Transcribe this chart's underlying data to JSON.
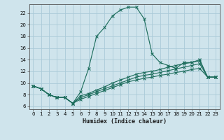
{
  "xlabel": "Humidex (Indice chaleur)",
  "xlim": [
    -0.5,
    23.5
  ],
  "ylim": [
    5.5,
    23.5
  ],
  "xticks": [
    0,
    1,
    2,
    3,
    4,
    5,
    6,
    7,
    8,
    9,
    10,
    11,
    12,
    13,
    14,
    15,
    16,
    17,
    18,
    19,
    20,
    21,
    22,
    23
  ],
  "yticks": [
    6,
    8,
    10,
    12,
    14,
    16,
    18,
    20,
    22
  ],
  "bg_color": "#cfe4ec",
  "grid_color": "#aacad8",
  "line_color": "#1a6b5a",
  "lines": [
    {
      "x": [
        0,
        1,
        2,
        3,
        4,
        5,
        6,
        7,
        8,
        9,
        10,
        11,
        12,
        13,
        14,
        15,
        16,
        17,
        18,
        19,
        20,
        21,
        22,
        23
      ],
      "y": [
        9.5,
        9.0,
        8.0,
        7.5,
        7.5,
        6.5,
        8.5,
        12.5,
        18.0,
        19.5,
        21.5,
        22.5,
        23.0,
        23.0,
        21.0,
        15.0,
        13.5,
        13.0,
        12.5,
        13.5,
        13.5,
        14.0,
        11.0,
        11.0
      ]
    },
    {
      "x": [
        0,
        1,
        2,
        3,
        4,
        5,
        6,
        7,
        8,
        9,
        10,
        11,
        12,
        13,
        14,
        15,
        16,
        17,
        18,
        19,
        20,
        21,
        22,
        23
      ],
      "y": [
        9.5,
        9.0,
        8.0,
        7.5,
        7.5,
        6.5,
        7.8,
        8.2,
        8.8,
        9.3,
        10.0,
        10.5,
        11.0,
        11.5,
        11.8,
        12.0,
        12.3,
        12.7,
        13.0,
        13.3,
        13.5,
        13.8,
        11.0,
        11.0
      ]
    },
    {
      "x": [
        0,
        1,
        2,
        3,
        4,
        5,
        6,
        7,
        8,
        9,
        10,
        11,
        12,
        13,
        14,
        15,
        16,
        17,
        18,
        19,
        20,
        21,
        22,
        23
      ],
      "y": [
        9.5,
        9.0,
        8.0,
        7.5,
        7.5,
        6.5,
        7.5,
        8.0,
        8.5,
        9.0,
        9.5,
        10.0,
        10.5,
        11.0,
        11.3,
        11.5,
        11.8,
        12.1,
        12.4,
        12.7,
        13.0,
        13.3,
        11.0,
        11.0
      ]
    },
    {
      "x": [
        0,
        1,
        2,
        3,
        4,
        5,
        6,
        7,
        8,
        9,
        10,
        11,
        12,
        13,
        14,
        15,
        16,
        17,
        18,
        19,
        20,
        21,
        22,
        23
      ],
      "y": [
        9.5,
        9.0,
        8.0,
        7.5,
        7.5,
        6.5,
        7.2,
        7.7,
        8.2,
        8.7,
        9.2,
        9.7,
        10.2,
        10.5,
        10.8,
        11.0,
        11.3,
        11.5,
        11.8,
        12.0,
        12.3,
        12.5,
        11.0,
        11.0
      ]
    }
  ]
}
